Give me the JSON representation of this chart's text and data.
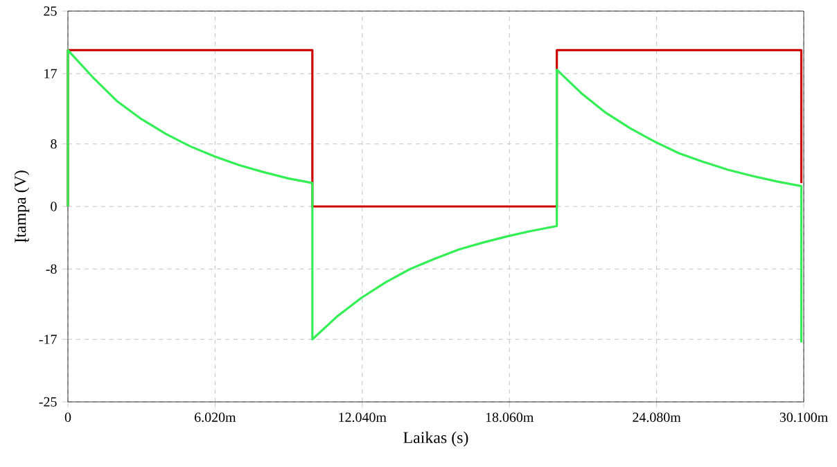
{
  "chart_data": {
    "type": "line",
    "xlabel": "Laikas (s)",
    "ylabel": "Įtampa (V)",
    "xlim": [
      0,
      30.1
    ],
    "ylim": [
      -25,
      25
    ],
    "xticks": [
      0,
      {
        "value": 6.02,
        "label": "6.020m"
      },
      {
        "value": 12.04,
        "label": "12.040m"
      },
      {
        "value": 18.06,
        "label": "18.060m"
      },
      {
        "value": 24.08,
        "label": "24.080m"
      },
      {
        "value": 30.1,
        "label": "30.100m"
      }
    ],
    "yticks": [
      -25,
      -17,
      -8,
      0,
      8,
      17,
      25
    ],
    "grid": true,
    "marker": "none",
    "line_style": "solid",
    "series": [
      {
        "color": "#cc0000",
        "x": [
          0,
          0,
          10,
          10,
          20,
          20,
          30,
          30
        ],
        "values": [
          0,
          20,
          20,
          0,
          0,
          20,
          20,
          3
        ]
      },
      {
        "color": "#33ee55",
        "x": [
          0,
          0,
          1,
          2,
          3,
          4,
          5,
          6,
          7,
          8,
          9,
          10,
          10,
          11,
          12,
          13,
          14,
          15,
          16,
          17,
          18,
          19,
          20,
          20,
          21,
          22,
          23,
          24,
          25,
          26,
          27,
          28,
          29,
          30,
          30
        ],
        "values": [
          0,
          20,
          16.6,
          13.5,
          11.2,
          9.3,
          7.7,
          6.4,
          5.3,
          4.4,
          3.6,
          3.0,
          -17,
          -14.1,
          -11.7,
          -9.7,
          -8.0,
          -6.7,
          -5.5,
          -4.6,
          -3.8,
          -3.1,
          -2.5,
          17.5,
          14.5,
          12.0,
          10.0,
          8.3,
          6.8,
          5.7,
          4.7,
          3.9,
          3.2,
          2.6,
          -17.4
        ]
      }
    ]
  }
}
